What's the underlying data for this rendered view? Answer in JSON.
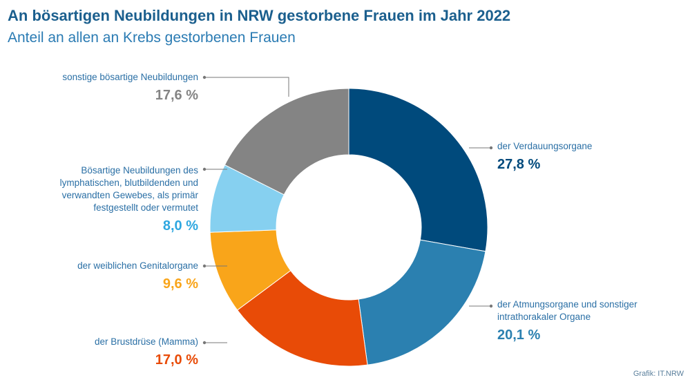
{
  "title": "An bösartigen Neubildungen in NRW gestorbene Frauen im Jahr 2022",
  "subtitle": "Anteil an allen an Krebs gestorbenen Frauen",
  "source": "Grafik: IT.NRW",
  "colors": {
    "title": "#1b5f8e",
    "subtitle": "#2a7bb3",
    "label_text": "#2a6fa5",
    "leader_line": "#777777"
  },
  "chart_data": {
    "type": "pie",
    "title": "An bösartigen Neubildungen in NRW gestorbene Frauen im Jahr 2022",
    "subtitle": "Anteil an allen an Krebs gestorbenen Frauen",
    "unit": "%",
    "slices": [
      {
        "label": "der Verdauungsorgane",
        "value": 27.8,
        "value_label": "27,8 %",
        "color": "#004a7c"
      },
      {
        "label": "der Atmungsorgane und sonstiger intrathorakaler Organe",
        "value": 20.1,
        "value_label": "20,1 %",
        "color": "#2b80b0"
      },
      {
        "label": "der Brustdrüse (Mamma)",
        "value": 17.0,
        "value_label": "17,0 %",
        "color": "#e84b07"
      },
      {
        "label": "der weiblichen Genitalorgane",
        "value": 9.6,
        "value_label": "9,6 %",
        "color": "#f9a51a"
      },
      {
        "label": "Bösartige Neubildungen des lymphatischen, blutbildenden und verwandten Gewebes, als primär festgestellt oder vermutet",
        "value": 8.0,
        "value_label": "8,0 %",
        "color": "#86d0f0"
      },
      {
        "label": "sonstige bösartige Neubildungen",
        "value": 17.6,
        "value_label": "17,6 %",
        "color": "#848484"
      }
    ]
  }
}
